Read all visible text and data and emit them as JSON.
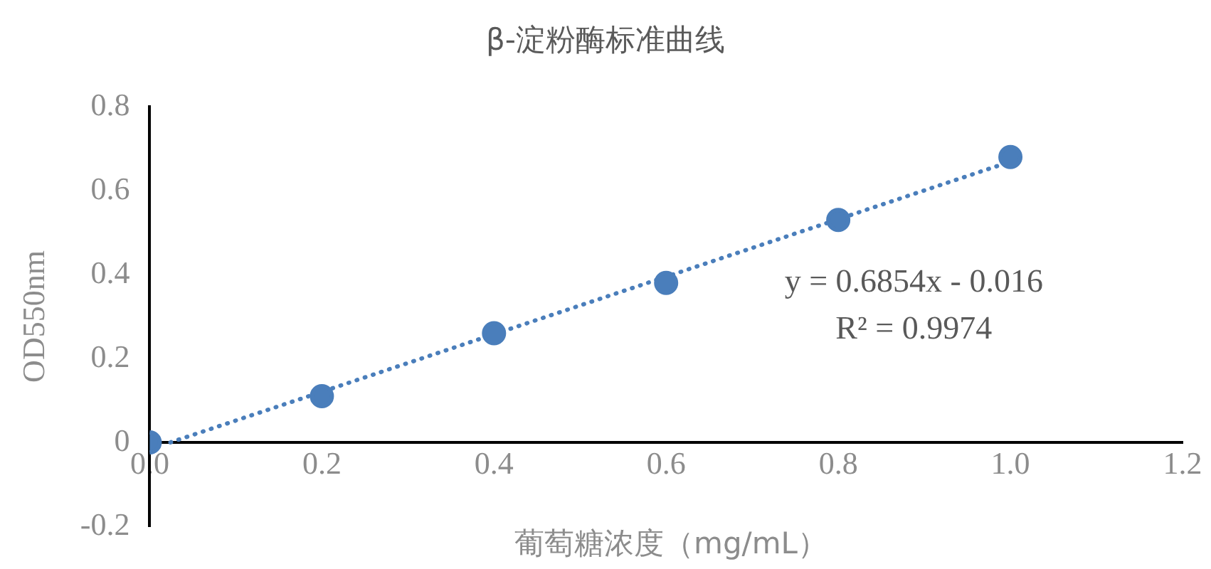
{
  "chart_data": {
    "type": "scatter",
    "title": "β-淀粉酶标准曲线",
    "xlabel": "葡萄糖浓度（mg/mL）",
    "ylabel": "OD550nm",
    "annotations": [
      "y = 0.6854x - 0.016",
      "R² = 0.9974"
    ],
    "x": [
      0,
      0.2,
      0.4,
      0.6,
      0.8,
      1.0
    ],
    "series": [
      {
        "color": "#4a7ebb",
        "values": [
          0,
          0.11,
          0.26,
          0.38,
          0.53,
          0.68
        ],
        "marker": "circle"
      },
      {
        "type": "line",
        "color": "#4a7ebb",
        "x": [
          0.024,
          1.0
        ],
        "values": [
          0,
          0.669
        ],
        "marker": "none",
        "line_style": "dotted"
      }
    ],
    "xlim": [
      0,
      1.2
    ],
    "xticks": [
      {
        "value": 0,
        "label": "0.0"
      },
      {
        "value": 0.2,
        "label": "0.2"
      },
      {
        "value": 0.4,
        "label": "0.4"
      },
      {
        "value": 0.6,
        "label": "0.6"
      },
      {
        "value": 0.8,
        "label": "0.8"
      },
      {
        "value": 1.0,
        "label": "1.0"
      },
      {
        "value": 1.2,
        "label": "1.2"
      }
    ],
    "ylim": [
      -0.2,
      0.8
    ],
    "yticks": [
      -0.2,
      0,
      0.2,
      0.4,
      0.6,
      0.8
    ],
    "grid": false,
    "legend": false
  }
}
